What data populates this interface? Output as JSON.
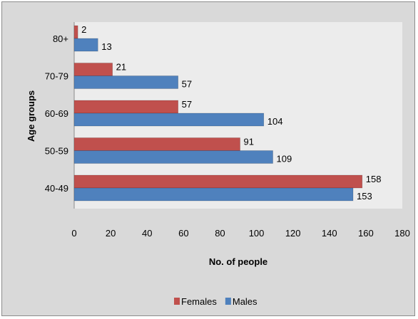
{
  "chart_data": {
    "type": "bar",
    "orientation": "horizontal",
    "categories": [
      "40-49",
      "50-59",
      "60-69",
      "70-79",
      "80+"
    ],
    "series": [
      {
        "name": "Females",
        "values": [
          158,
          91,
          57,
          21,
          2
        ],
        "color": "#c0504d"
      },
      {
        "name": "Males",
        "values": [
          153,
          109,
          104,
          57,
          13
        ],
        "color": "#4f81bd"
      }
    ],
    "xlabel": "No. of people",
    "ylabel": "Age groups",
    "xlim": [
      0,
      180
    ],
    "x_ticks": [
      0,
      20,
      40,
      60,
      80,
      100,
      120,
      140,
      160,
      180
    ],
    "grid": false,
    "legend_position": "bottom",
    "plot_background": "#ececec",
    "chart_background": "#d9d9d9"
  }
}
